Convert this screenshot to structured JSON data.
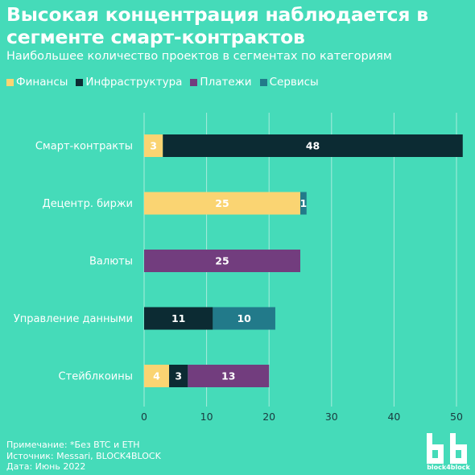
{
  "header": {
    "title": "Высокая концентрация наблюдается в сегменте смарт-контрактов",
    "subtitle": "Наибольшее количество проектов в сегментах по категориям"
  },
  "legend": [
    {
      "label": "Финансы",
      "color": "#fad472"
    },
    {
      "label": "Инфраструктура",
      "color": "#0c2b33"
    },
    {
      "label": "Платежи",
      "color": "#723d7e"
    },
    {
      "label": "Сервисы",
      "color": "#227a8a"
    }
  ],
  "chart_data": {
    "type": "bar",
    "orientation": "horizontal",
    "stacked": true,
    "categories": [
      "Смарт-контракты",
      "Децентр. биржи",
      "Валюты",
      "Управление данными",
      "Стейблкоины"
    ],
    "series": [
      {
        "name": "Финансы",
        "color": "#fad472",
        "values": [
          3,
          25,
          0,
          0,
          4
        ]
      },
      {
        "name": "Инфраструктура",
        "color": "#0c2b33",
        "values": [
          48,
          0,
          0,
          11,
          3
        ]
      },
      {
        "name": "Платежи",
        "color": "#723d7e",
        "values": [
          0,
          0,
          25,
          0,
          13
        ]
      },
      {
        "name": "Сервисы",
        "color": "#227a8a",
        "values": [
          0,
          1,
          0,
          10,
          0
        ]
      }
    ],
    "xlim": [
      0,
      50
    ],
    "xticks": [
      0,
      10,
      20,
      30,
      40,
      50
    ],
    "grid": true,
    "legend_position": "top-left"
  },
  "footer": {
    "note": "Примечание: *Без BTC и ETH",
    "source": "Источник: Messari, BLOCK4BLOCK",
    "date": "Дата: Июнь 2022"
  },
  "logo": {
    "text": "block4block"
  }
}
